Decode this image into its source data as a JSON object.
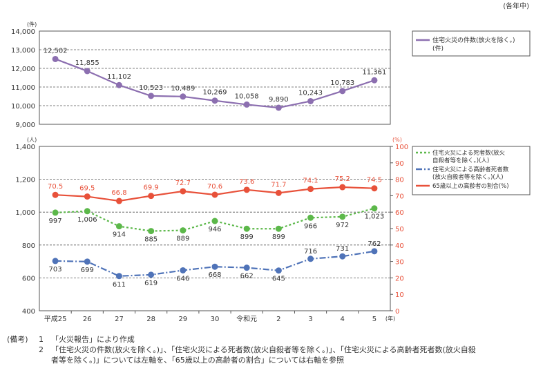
{
  "unit_note": "(各年中)",
  "notes": {
    "label": "(備考)",
    "items": [
      {
        "num": "1",
        "text": "「火災報告」により作成"
      },
      {
        "num": "2",
        "text": "「住宅火災の件数(放火を除く。)」、「住宅火災による死者数(放火自殺者等を除く。)」、「住宅火災による高齢者死者数(放火自殺"
      },
      {
        "num": "",
        "text": "者等を除く。)」については左軸を、「65歳以上の高齢者の割合」については右軸を参照"
      }
    ]
  },
  "colors": {
    "fires": "#8c6fb0",
    "deaths": "#5cb84a",
    "elderly_deaths": "#4f73b8",
    "ratio": "#e8513a",
    "grid": "#555555",
    "axis": "#555555"
  },
  "chart_data": [
    {
      "type": "line",
      "categories": [
        "平成25",
        "26",
        "27",
        "28",
        "29",
        "30",
        "令和元",
        "2",
        "3",
        "4",
        "5"
      ],
      "x_unit": "(年)",
      "y_unit": "(件)",
      "ylim": [
        9000,
        14000
      ],
      "yticks": [
        9000,
        10000,
        11000,
        12000,
        13000,
        14000
      ],
      "ytick_labels": [
        "9,000",
        "10,000",
        "11,000",
        "12,000",
        "13,000",
        "14,000"
      ],
      "grid": true,
      "legend_position": "top-right",
      "series": [
        {
          "name": "住宅火災の件数(放火を除く。)(件)",
          "legend_lines": [
            "住宅火災の件数(放火を除く。)",
            "(件)"
          ],
          "axis": "left",
          "style": "solid",
          "values": [
            12502,
            11855,
            11102,
            10523,
            10489,
            10269,
            10058,
            9890,
            10243,
            10783,
            11361
          ],
          "labels": [
            "12,502",
            "11,855",
            "11,102",
            "10,523",
            "10,489",
            "10,269",
            "10,058",
            "9,890",
            "10,243",
            "10,783",
            "11,361"
          ]
        }
      ]
    },
    {
      "type": "line",
      "categories": [
        "平成25",
        "26",
        "27",
        "28",
        "29",
        "30",
        "令和元",
        "2",
        "3",
        "4",
        "5"
      ],
      "x_unit": "(年)",
      "y_unit": "(人)",
      "y2_unit": "(%)",
      "ylim": [
        400,
        1400
      ],
      "yticks": [
        400,
        600,
        800,
        1000,
        1200,
        1400
      ],
      "ytick_labels": [
        "400",
        "600",
        "800",
        "1,000",
        "1,200",
        "1,400"
      ],
      "y2lim": [
        0,
        100
      ],
      "y2ticks": [
        0,
        10,
        20,
        30,
        40,
        50,
        60,
        70,
        80,
        90,
        100
      ],
      "grid": true,
      "legend_position": "top-right",
      "series": [
        {
          "name": "住宅火災による死者数(放火自殺者等を除く。)(人)",
          "legend_lines": [
            "住宅火災による死者数(放火",
            "自殺者等を除く。)(人)"
          ],
          "axis": "left",
          "style": "dotted",
          "values": [
            997,
            1006,
            914,
            885,
            889,
            946,
            899,
            899,
            966,
            972,
            1023
          ],
          "labels": [
            "997",
            "1,006",
            "914",
            "885",
            "889",
            "946",
            "899",
            "899",
            "966",
            "972",
            "1,023"
          ]
        },
        {
          "name": "住宅火災による高齢者死者数(放火自殺者等を除く。)(人)",
          "legend_lines": [
            "住宅火災による高齢者死者数",
            "(放火自殺者等を除く。)(人)"
          ],
          "axis": "left",
          "style": "dashdot",
          "values": [
            703,
            699,
            611,
            619,
            646,
            668,
            662,
            645,
            716,
            731,
            762
          ],
          "labels": [
            "703",
            "699",
            "611",
            "619",
            "646",
            "668",
            "662",
            "645",
            "716",
            "731",
            "762"
          ]
        },
        {
          "name": "65歳以上の高齢者の割合(%)",
          "legend_lines": [
            "65歳以上の高齢者の割合(%)"
          ],
          "axis": "right",
          "style": "solid",
          "values": [
            70.5,
            69.5,
            66.8,
            69.9,
            72.7,
            70.6,
            73.6,
            71.7,
            74.1,
            75.2,
            74.5
          ],
          "labels": [
            "70.5",
            "69.5",
            "66.8",
            "69.9",
            "72.7",
            "70.6",
            "73.6",
            "71.7",
            "74.1",
            "75.2",
            "74.5"
          ]
        }
      ]
    }
  ]
}
